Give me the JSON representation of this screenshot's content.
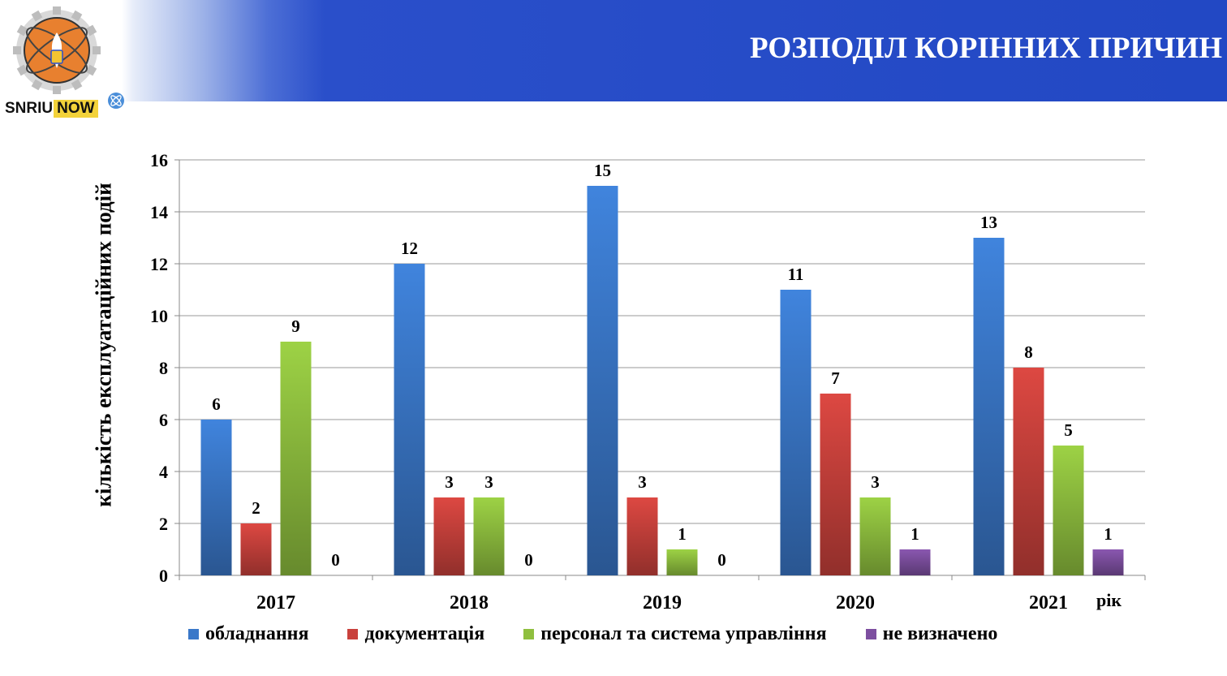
{
  "header": {
    "title": "РОЗПОДІЛ КОРІННИХ ПРИЧИН",
    "logo_text_left": "SNRIU",
    "logo_text_right": "NOW"
  },
  "chart_data": {
    "type": "bar",
    "categories": [
      "2017",
      "2018",
      "2019",
      "2020",
      "2021"
    ],
    "series": [
      {
        "name": "обладнання",
        "values": [
          6,
          12,
          15,
          11,
          13
        ],
        "color": "#3a78c9"
      },
      {
        "name": "документація",
        "values": [
          2,
          3,
          3,
          7,
          8
        ],
        "color": "#c9413c"
      },
      {
        "name": "персонал та система управління",
        "values": [
          9,
          3,
          1,
          3,
          5
        ],
        "color": "#8fbf3f"
      },
      {
        "name": "не визначено",
        "values": [
          0,
          0,
          0,
          1,
          1
        ],
        "color": "#7d4fa0"
      }
    ],
    "ylabel": "кількість експлуатаційних подій",
    "xlabel": "рік",
    "ylim": [
      0,
      16
    ],
    "yticks": [
      0,
      2,
      4,
      6,
      8,
      10,
      12,
      14,
      16
    ],
    "grid": true,
    "legend_position": "bottom"
  }
}
